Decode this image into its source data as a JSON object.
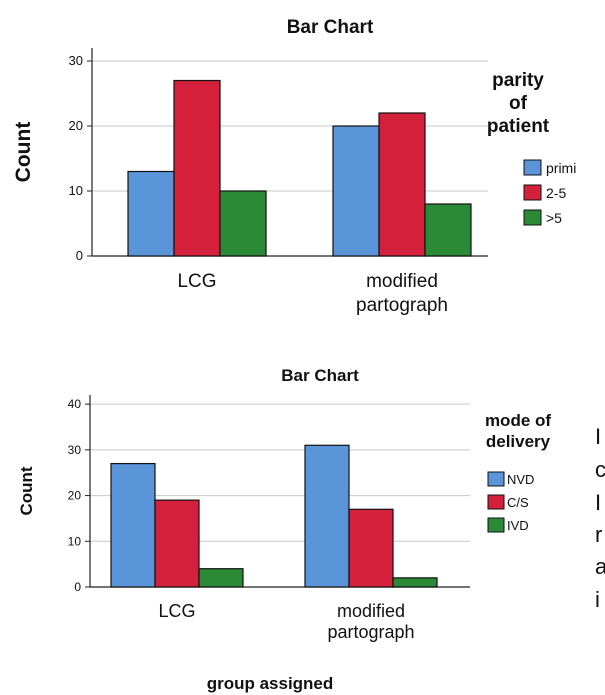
{
  "chart_data": [
    {
      "type": "bar",
      "title": "Bar Chart",
      "ylabel": "Count",
      "xlabel": "",
      "categories": [
        "LCG",
        "modified\npartograph"
      ],
      "ylim": [
        0,
        32
      ],
      "yticks": [
        0,
        10,
        20,
        30
      ],
      "grid": true,
      "legend_title": "parity\nof\npatient",
      "legend_placement": "right",
      "series": [
        {
          "name": "primi",
          "values": [
            13,
            20
          ],
          "color": "#5b95d9"
        },
        {
          "name": "2-5",
          "values": [
            27,
            22
          ],
          "color": "#d4203a"
        },
        {
          "name": ">5",
          "values": [
            10,
            8
          ],
          "color": "#2a8a35"
        }
      ]
    },
    {
      "type": "bar",
      "title": "Bar Chart",
      "ylabel": "Count",
      "xlabel": "group assigned",
      "categories": [
        "LCG",
        "modified\npartograph"
      ],
      "ylim": [
        0,
        42
      ],
      "yticks": [
        0,
        10,
        20,
        30,
        40
      ],
      "grid": true,
      "legend_title": "mode of\ndelivery",
      "legend_placement": "right",
      "series": [
        {
          "name": "NVD",
          "values": [
            27,
            31
          ],
          "color": "#5b95d9"
        },
        {
          "name": "C/S",
          "values": [
            19,
            17
          ],
          "color": "#d4203a"
        },
        {
          "name": "IVD",
          "values": [
            4,
            2
          ],
          "color": "#2a8a35"
        }
      ]
    }
  ],
  "edge_text": [
    "I",
    "c",
    "I",
    "r",
    "a",
    "i"
  ]
}
